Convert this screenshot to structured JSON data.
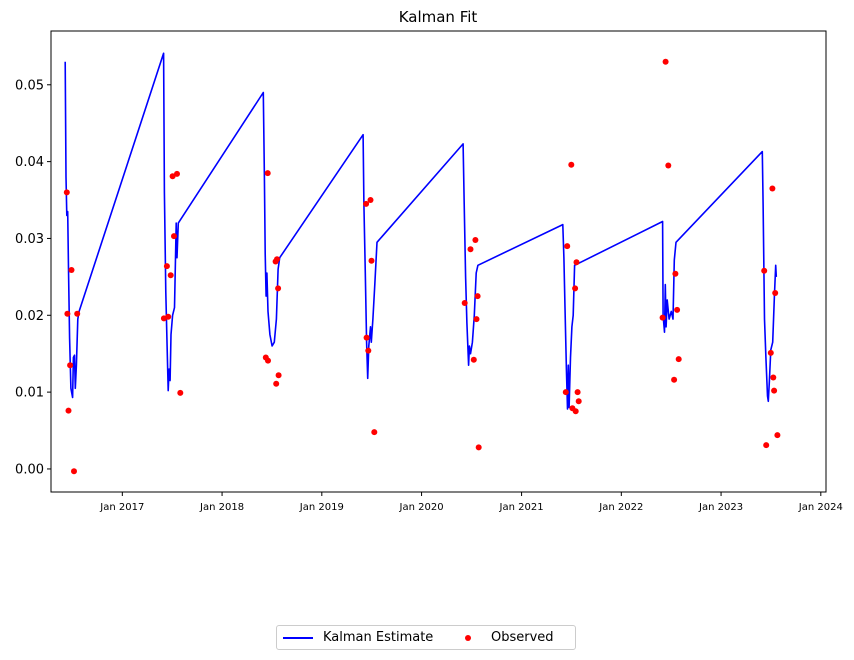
{
  "chart_data": {
    "type": "line",
    "title": "Kalman Fit",
    "xlabel": "",
    "ylabel": "",
    "x_axis": {
      "type": "date",
      "range": [
        "2016-04-15",
        "2024-01-20"
      ],
      "tick_labels": [
        "Jan 2017",
        "Jan 2018",
        "Jan 2019",
        "Jan 2020",
        "Jan 2021",
        "Jan 2022",
        "Jan 2023",
        "Jan 2024"
      ],
      "tick_dates": [
        "2017-01-01",
        "2018-01-01",
        "2019-01-01",
        "2020-01-01",
        "2021-01-01",
        "2022-01-01",
        "2023-01-01",
        "2024-01-01"
      ]
    },
    "y_axis": {
      "range": [
        -0.003,
        0.057
      ],
      "tick_labels": [
        "0.00",
        "0.01",
        "0.02",
        "0.03",
        "0.04",
        "0.05"
      ],
      "ticks": [
        0,
        0.01,
        0.02,
        0.03,
        0.04,
        0.05
      ]
    },
    "grid": false,
    "legend_position": "bottom-center",
    "series": [
      {
        "name": "Kalman Estimate",
        "kind": "line",
        "color": "#0000ff",
        "points": [
          [
            "2016-06-06",
            0.053
          ],
          [
            "2016-06-09",
            0.038
          ],
          [
            "2016-06-12",
            0.033
          ],
          [
            "2016-06-15",
            0.0335
          ],
          [
            "2016-06-18",
            0.026
          ],
          [
            "2016-06-22",
            0.017
          ],
          [
            "2016-06-27",
            0.0105
          ],
          [
            "2016-07-03",
            0.0093
          ],
          [
            "2016-07-06",
            0.0145
          ],
          [
            "2016-07-10",
            0.0148
          ],
          [
            "2016-07-13",
            0.0105
          ],
          [
            "2016-07-17",
            0.0135
          ],
          [
            "2016-07-22",
            0.0195
          ],
          [
            "2016-07-27",
            0.0205
          ],
          [
            "2017-06-01",
            0.0541
          ],
          [
            "2017-06-04",
            0.036
          ],
          [
            "2017-06-09",
            0.023
          ],
          [
            "2017-06-14",
            0.016
          ],
          [
            "2017-06-18",
            0.0102
          ],
          [
            "2017-06-21",
            0.013
          ],
          [
            "2017-06-25",
            0.0115
          ],
          [
            "2017-06-28",
            0.0175
          ],
          [
            "2017-07-04",
            0.02
          ],
          [
            "2017-07-11",
            0.021
          ],
          [
            "2017-07-17",
            0.032
          ],
          [
            "2017-07-20",
            0.0275
          ],
          [
            "2017-07-25",
            0.032
          ],
          [
            "2018-06-01",
            0.049
          ],
          [
            "2018-06-05",
            0.038
          ],
          [
            "2018-06-08",
            0.028
          ],
          [
            "2018-06-11",
            0.0225
          ],
          [
            "2018-06-14",
            0.0255
          ],
          [
            "2018-06-18",
            0.0205
          ],
          [
            "2018-06-25",
            0.0175
          ],
          [
            "2018-07-03",
            0.016
          ],
          [
            "2018-07-11",
            0.0165
          ],
          [
            "2018-07-19",
            0.0195
          ],
          [
            "2018-07-25",
            0.026
          ],
          [
            "2018-07-31",
            0.0275
          ],
          [
            "2019-06-01",
            0.0435
          ],
          [
            "2019-06-04",
            0.0345
          ],
          [
            "2019-06-09",
            0.0255
          ],
          [
            "2019-06-14",
            0.0165
          ],
          [
            "2019-06-18",
            0.0118
          ],
          [
            "2019-06-22",
            0.016
          ],
          [
            "2019-06-28",
            0.0185
          ],
          [
            "2019-07-01",
            0.0165
          ],
          [
            "2019-07-07",
            0.0195
          ],
          [
            "2019-07-14",
            0.024
          ],
          [
            "2019-07-22",
            0.0295
          ],
          [
            "2020-06-01",
            0.0423
          ],
          [
            "2020-06-05",
            0.0345
          ],
          [
            "2020-06-10",
            0.025
          ],
          [
            "2020-06-15",
            0.019
          ],
          [
            "2020-06-21",
            0.0135
          ],
          [
            "2020-06-24",
            0.016
          ],
          [
            "2020-06-28",
            0.015
          ],
          [
            "2020-07-05",
            0.0165
          ],
          [
            "2020-07-12",
            0.02
          ],
          [
            "2020-07-19",
            0.0255
          ],
          [
            "2020-07-25",
            0.0265
          ],
          [
            "2021-06-01",
            0.0318
          ],
          [
            "2021-06-05",
            0.0275
          ],
          [
            "2021-06-09",
            0.021
          ],
          [
            "2021-06-14",
            0.013
          ],
          [
            "2021-06-18",
            0.0078
          ],
          [
            "2021-06-21",
            0.0135
          ],
          [
            "2021-06-24",
            0.008
          ],
          [
            "2021-06-29",
            0.0145
          ],
          [
            "2021-07-04",
            0.0185
          ],
          [
            "2021-07-09",
            0.02
          ],
          [
            "2021-07-14",
            0.0265
          ],
          [
            "2022-06-01",
            0.0322
          ],
          [
            "2022-06-03",
            0.02
          ],
          [
            "2022-06-08",
            0.0178
          ],
          [
            "2022-06-11",
            0.024
          ],
          [
            "2022-06-14",
            0.0185
          ],
          [
            "2022-06-18",
            0.022
          ],
          [
            "2022-06-25",
            0.0195
          ],
          [
            "2022-07-03",
            0.0205
          ],
          [
            "2022-07-09",
            0.0195
          ],
          [
            "2022-07-14",
            0.0272
          ],
          [
            "2022-07-20",
            0.0295
          ],
          [
            "2023-06-01",
            0.0413
          ],
          [
            "2023-06-04",
            0.0345
          ],
          [
            "2023-06-09",
            0.0195
          ],
          [
            "2023-06-14",
            0.0145
          ],
          [
            "2023-06-20",
            0.0095
          ],
          [
            "2023-06-23",
            0.0088
          ],
          [
            "2023-06-27",
            0.0115
          ],
          [
            "2023-07-02",
            0.0155
          ],
          [
            "2023-07-09",
            0.0165
          ],
          [
            "2023-07-15",
            0.0225
          ],
          [
            "2023-07-20",
            0.0265
          ],
          [
            "2023-07-22",
            0.025
          ]
        ]
      },
      {
        "name": "Observed",
        "kind": "scatter",
        "color": "#ff0000",
        "points": [
          [
            "2016-06-12",
            0.036
          ],
          [
            "2016-06-14",
            0.0202
          ],
          [
            "2016-06-18",
            0.0076
          ],
          [
            "2016-06-24",
            0.0135
          ],
          [
            "2016-06-29",
            0.0259
          ],
          [
            "2016-07-08",
            -0.0003
          ],
          [
            "2016-07-20",
            0.0202
          ],
          [
            "2017-06-02",
            0.0196
          ],
          [
            "2017-06-13",
            0.0264
          ],
          [
            "2017-06-18",
            0.0198
          ],
          [
            "2017-06-27",
            0.0252
          ],
          [
            "2017-07-04",
            0.0381
          ],
          [
            "2017-07-09",
            0.0303
          ],
          [
            "2017-07-20",
            0.0384
          ],
          [
            "2017-08-01",
            0.0099
          ],
          [
            "2018-06-10",
            0.0145
          ],
          [
            "2018-06-17",
            0.0385
          ],
          [
            "2018-06-18",
            0.0141
          ],
          [
            "2018-07-16",
            0.027
          ],
          [
            "2018-07-18",
            0.0111
          ],
          [
            "2018-07-21",
            0.0273
          ],
          [
            "2018-07-25",
            0.0235
          ],
          [
            "2018-07-27",
            0.0122
          ],
          [
            "2019-06-12",
            0.0345
          ],
          [
            "2019-06-14",
            0.0171
          ],
          [
            "2019-06-20",
            0.0154
          ],
          [
            "2019-06-28",
            0.035
          ],
          [
            "2019-07-02",
            0.0271
          ],
          [
            "2019-07-12",
            0.0048
          ],
          [
            "2020-06-07",
            0.0216
          ],
          [
            "2020-06-28",
            0.0286
          ],
          [
            "2020-07-10",
            0.0142
          ],
          [
            "2020-07-16",
            0.0298
          ],
          [
            "2020-07-20",
            0.0195
          ],
          [
            "2020-07-24",
            0.0225
          ],
          [
            "2020-07-28",
            0.0028
          ],
          [
            "2021-06-12",
            0.01
          ],
          [
            "2021-06-17",
            0.029
          ],
          [
            "2021-07-02",
            0.0396
          ],
          [
            "2021-07-06",
            0.0079
          ],
          [
            "2021-07-16",
            0.0235
          ],
          [
            "2021-07-18",
            0.0075
          ],
          [
            "2021-07-21",
            0.0269
          ],
          [
            "2021-07-25",
            0.01
          ],
          [
            "2021-07-29",
            0.0088
          ],
          [
            "2022-06-01",
            0.0197
          ],
          [
            "2022-06-12",
            0.053
          ],
          [
            "2022-06-22",
            0.0395
          ],
          [
            "2022-07-13",
            0.0116
          ],
          [
            "2022-07-18",
            0.0254
          ],
          [
            "2022-07-24",
            0.0207
          ],
          [
            "2022-07-30",
            0.0143
          ],
          [
            "2023-06-08",
            0.0258
          ],
          [
            "2023-06-15",
            0.0031
          ],
          [
            "2023-07-02",
            0.0151
          ],
          [
            "2023-07-08",
            0.0365
          ],
          [
            "2023-07-11",
            0.0119
          ],
          [
            "2023-07-14",
            0.0102
          ],
          [
            "2023-07-18",
            0.0229
          ],
          [
            "2023-07-26",
            0.0044
          ]
        ]
      }
    ]
  }
}
